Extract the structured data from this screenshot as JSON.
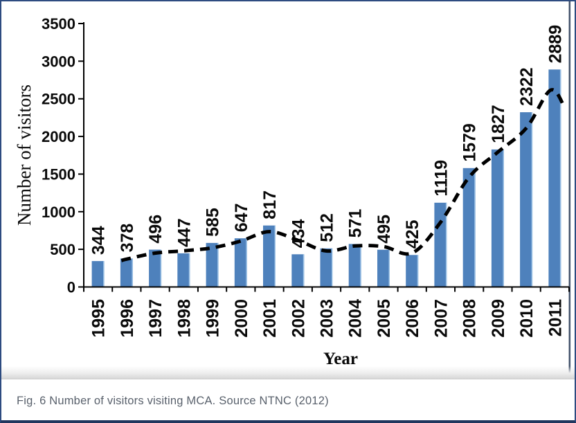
{
  "figure": {
    "caption": "Fig. 6 Number of visitors visiting MCA. Source NTNC (2012)"
  },
  "chart_data": {
    "type": "bar",
    "title": "",
    "xlabel": "Year",
    "ylabel": "Number of visitors",
    "categories": [
      "1995",
      "1996",
      "1997",
      "1998",
      "1999",
      "2000",
      "2001",
      "2002",
      "2003",
      "2004",
      "2005",
      "2006",
      "2007",
      "2008",
      "2009",
      "2010",
      "2011"
    ],
    "values": [
      344,
      378,
      496,
      447,
      585,
      647,
      817,
      434,
      512,
      571,
      495,
      425,
      1119,
      1579,
      1827,
      2322,
      2889
    ],
    "data_labels_shown": true,
    "ylim": [
      0,
      3500
    ],
    "ytick_step": 500,
    "grid": false,
    "legend": "none",
    "bar_color": "#4e81bc",
    "bar_edge_color": "#9dc3e6",
    "axis_color": "#000000",
    "trendline": {
      "style": "dashed",
      "color": "#000000",
      "note": "dashed trend curve overlaid on bars; points estimated from gridlines as [category_index, value]",
      "points": [
        [
          0.82,
          350
        ],
        [
          1,
          370
        ],
        [
          2,
          450
        ],
        [
          3,
          480
        ],
        [
          4,
          520
        ],
        [
          5,
          610
        ],
        [
          6,
          735
        ],
        [
          7,
          620
        ],
        [
          8,
          478
        ],
        [
          9,
          545
        ],
        [
          10,
          537
        ],
        [
          11,
          452
        ],
        [
          12,
          860
        ],
        [
          13,
          1460
        ],
        [
          14,
          1790
        ],
        [
          15,
          2110
        ],
        [
          15.85,
          2615
        ],
        [
          16.35,
          2380
        ]
      ]
    }
  }
}
